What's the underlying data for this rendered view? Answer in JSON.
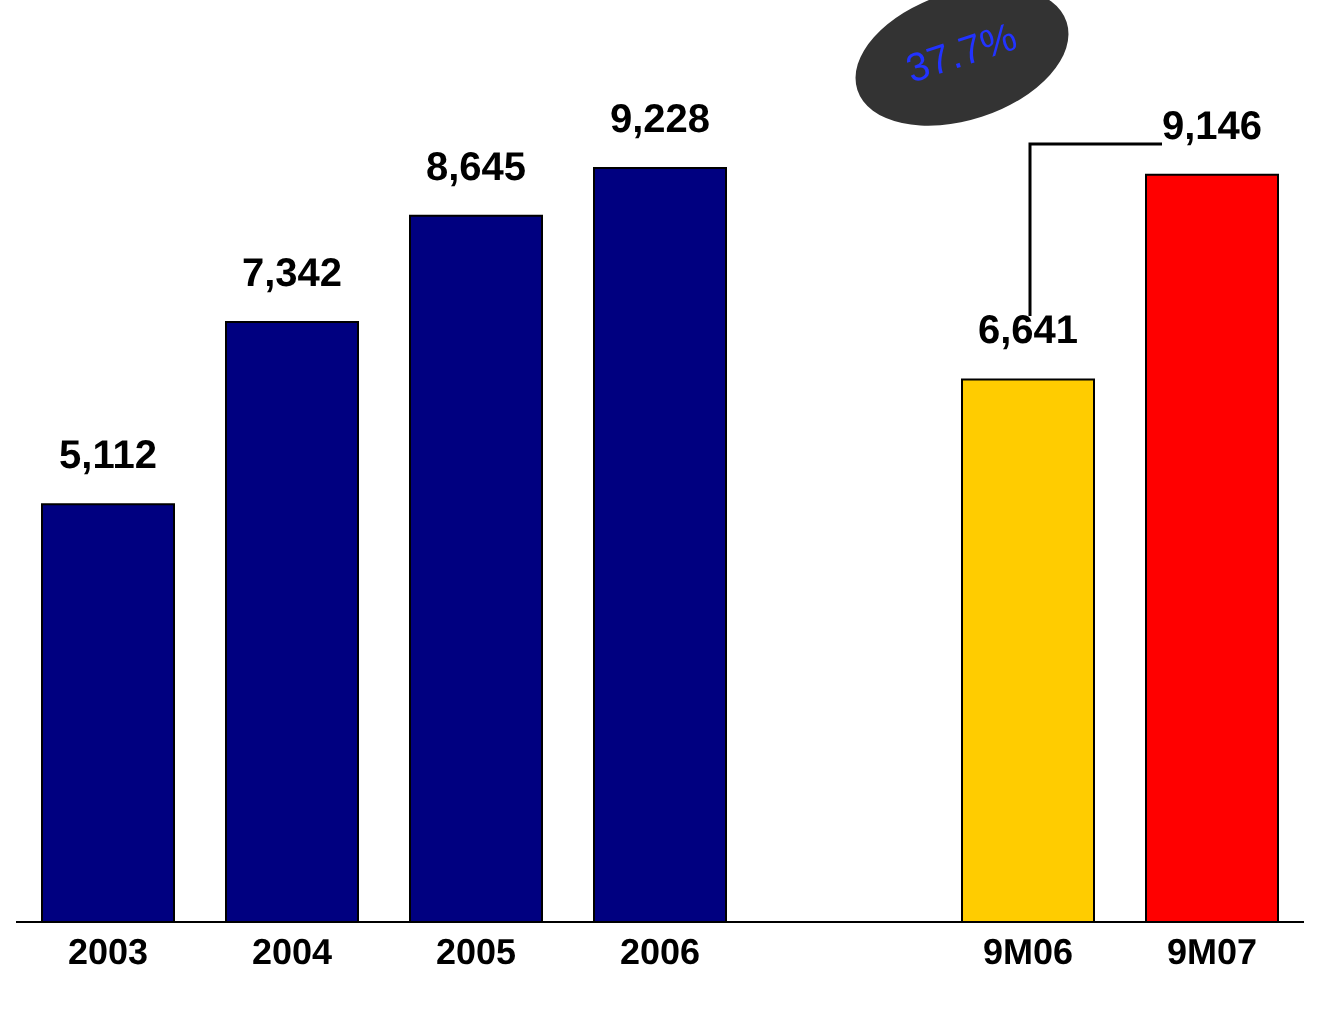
{
  "chart_data": {
    "type": "bar",
    "categories": [
      "2003",
      "2004",
      "2005",
      "2006",
      null,
      "9M06",
      "9M07"
    ],
    "values": [
      5112,
      7342,
      8645,
      9228,
      null,
      6641,
      9146
    ],
    "value_labels": [
      "5,112",
      "7,342",
      "8,645",
      "9,228",
      null,
      "6,641",
      "9,146"
    ],
    "colors": [
      "#000080",
      "#000080",
      "#000080",
      "#000080",
      "#000080",
      "#ffcc00",
      "#ff0000"
    ],
    "annotations": [
      "37.7%"
    ]
  }
}
